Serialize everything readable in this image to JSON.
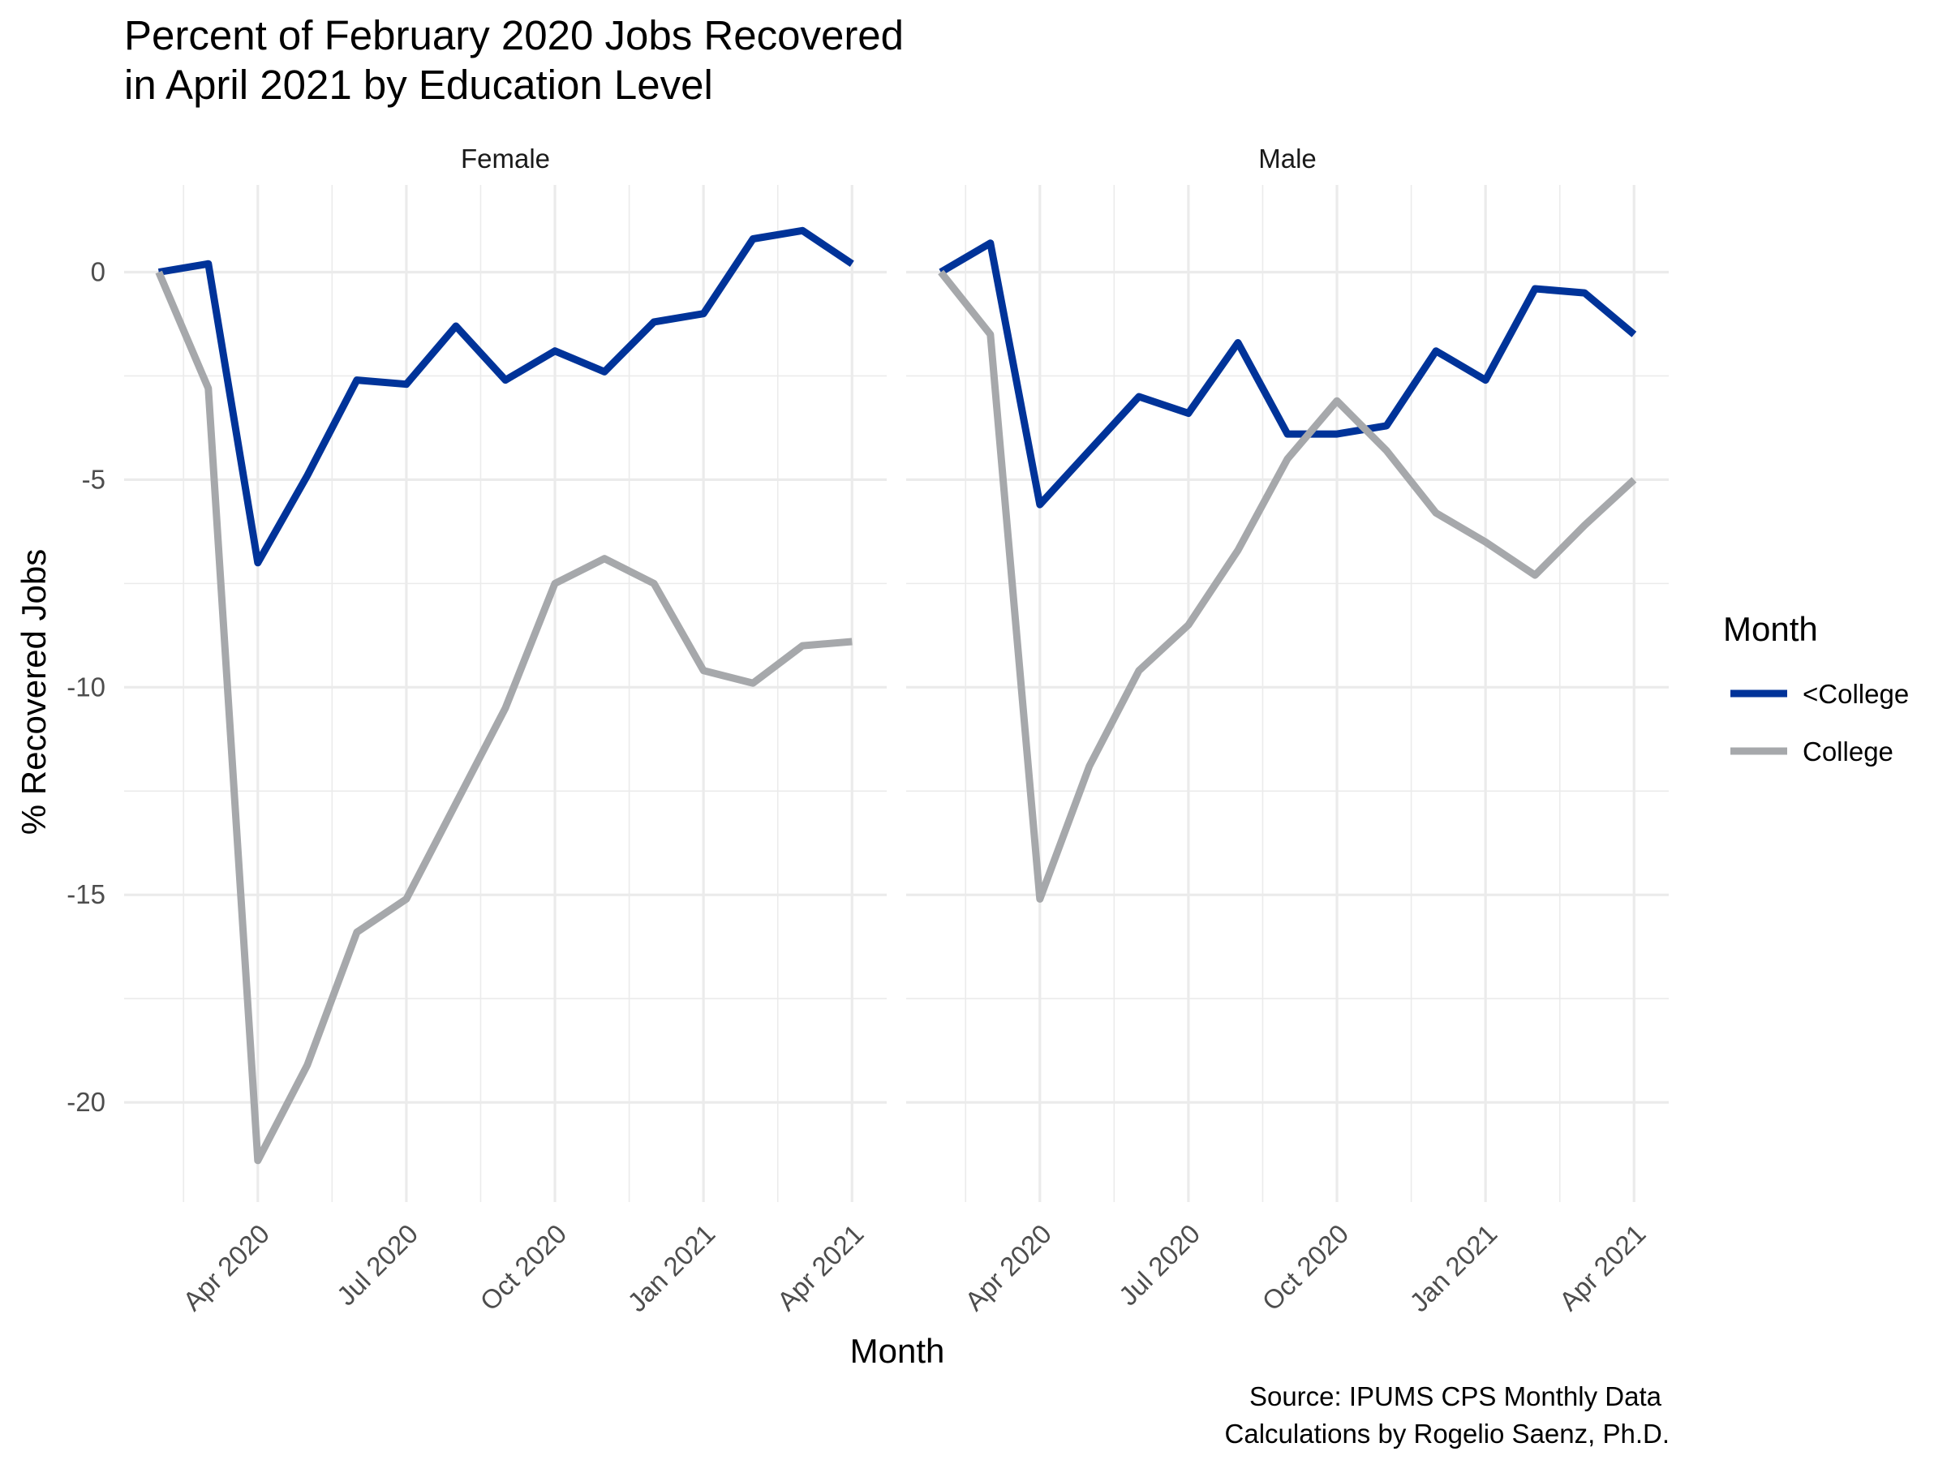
{
  "chart_data": {
    "type": "line",
    "title": [
      "Percent of February 2020 Jobs Recovered",
      "in April 2021 by Education Level"
    ],
    "xlabel": "Month",
    "ylabel": "% Recovered Jobs",
    "caption": [
      "Source: IPUMS CPS Monthly Data",
      "Calculations by Rogelio Saenz, Ph.D."
    ],
    "legend": {
      "title": "Month",
      "placement": "right",
      "entries": [
        {
          "label": "<College",
          "color": "#003399"
        },
        {
          "label": "College",
          "color": "#a6a8ab"
        }
      ]
    },
    "x": [
      "2020-02",
      "2020-03",
      "2020-04",
      "2020-05",
      "2020-06",
      "2020-07",
      "2020-08",
      "2020-09",
      "2020-10",
      "2020-11",
      "2020-12",
      "2021-01",
      "2021-02",
      "2021-03",
      "2021-04"
    ],
    "x_tick_labels": [
      {
        "date": "2020-04",
        "label": "Apr 2020"
      },
      {
        "date": "2020-07",
        "label": "Jul 2020"
      },
      {
        "date": "2020-10",
        "label": "Oct 2020"
      },
      {
        "date": "2021-01",
        "label": "Jan 2021"
      },
      {
        "date": "2021-04",
        "label": "Apr 2021"
      }
    ],
    "y_ticks": [
      0,
      -5,
      -10,
      -15,
      -20
    ],
    "y_tick_labels": [
      "0",
      "-5",
      "-10",
      "-15",
      "-20"
    ],
    "ylim": [
      -22.4,
      2.1
    ],
    "grid": true,
    "panels": [
      {
        "name": "Female",
        "series": [
          {
            "name": "<College",
            "color": "#003399",
            "values": [
              0.0,
              0.2,
              -7.0,
              -4.9,
              -2.6,
              -2.7,
              -1.3,
              -2.6,
              -1.9,
              -2.4,
              -1.2,
              -1.0,
              0.8,
              1.0,
              0.2
            ]
          },
          {
            "name": "College",
            "color": "#a6a8ab",
            "values": [
              0.0,
              -2.8,
              -21.4,
              -19.1,
              -15.9,
              -15.1,
              -12.8,
              -10.5,
              -7.5,
              -6.9,
              -7.5,
              -9.6,
              -9.9,
              -9.0,
              -8.9
            ]
          }
        ]
      },
      {
        "name": "Male",
        "series": [
          {
            "name": "<College",
            "color": "#003399",
            "values": [
              0.0,
              0.7,
              -5.6,
              -4.3,
              -3.0,
              -3.4,
              -1.7,
              -3.9,
              -3.9,
              -3.7,
              -1.9,
              -2.6,
              -0.4,
              -0.5,
              -1.5
            ]
          },
          {
            "name": "College",
            "color": "#a6a8ab",
            "values": [
              0.0,
              -1.5,
              -15.1,
              -11.9,
              -9.6,
              -8.5,
              -6.7,
              -4.5,
              -3.1,
              -4.3,
              -5.8,
              -6.5,
              -7.3,
              -6.1,
              -5.0
            ]
          }
        ]
      }
    ]
  }
}
